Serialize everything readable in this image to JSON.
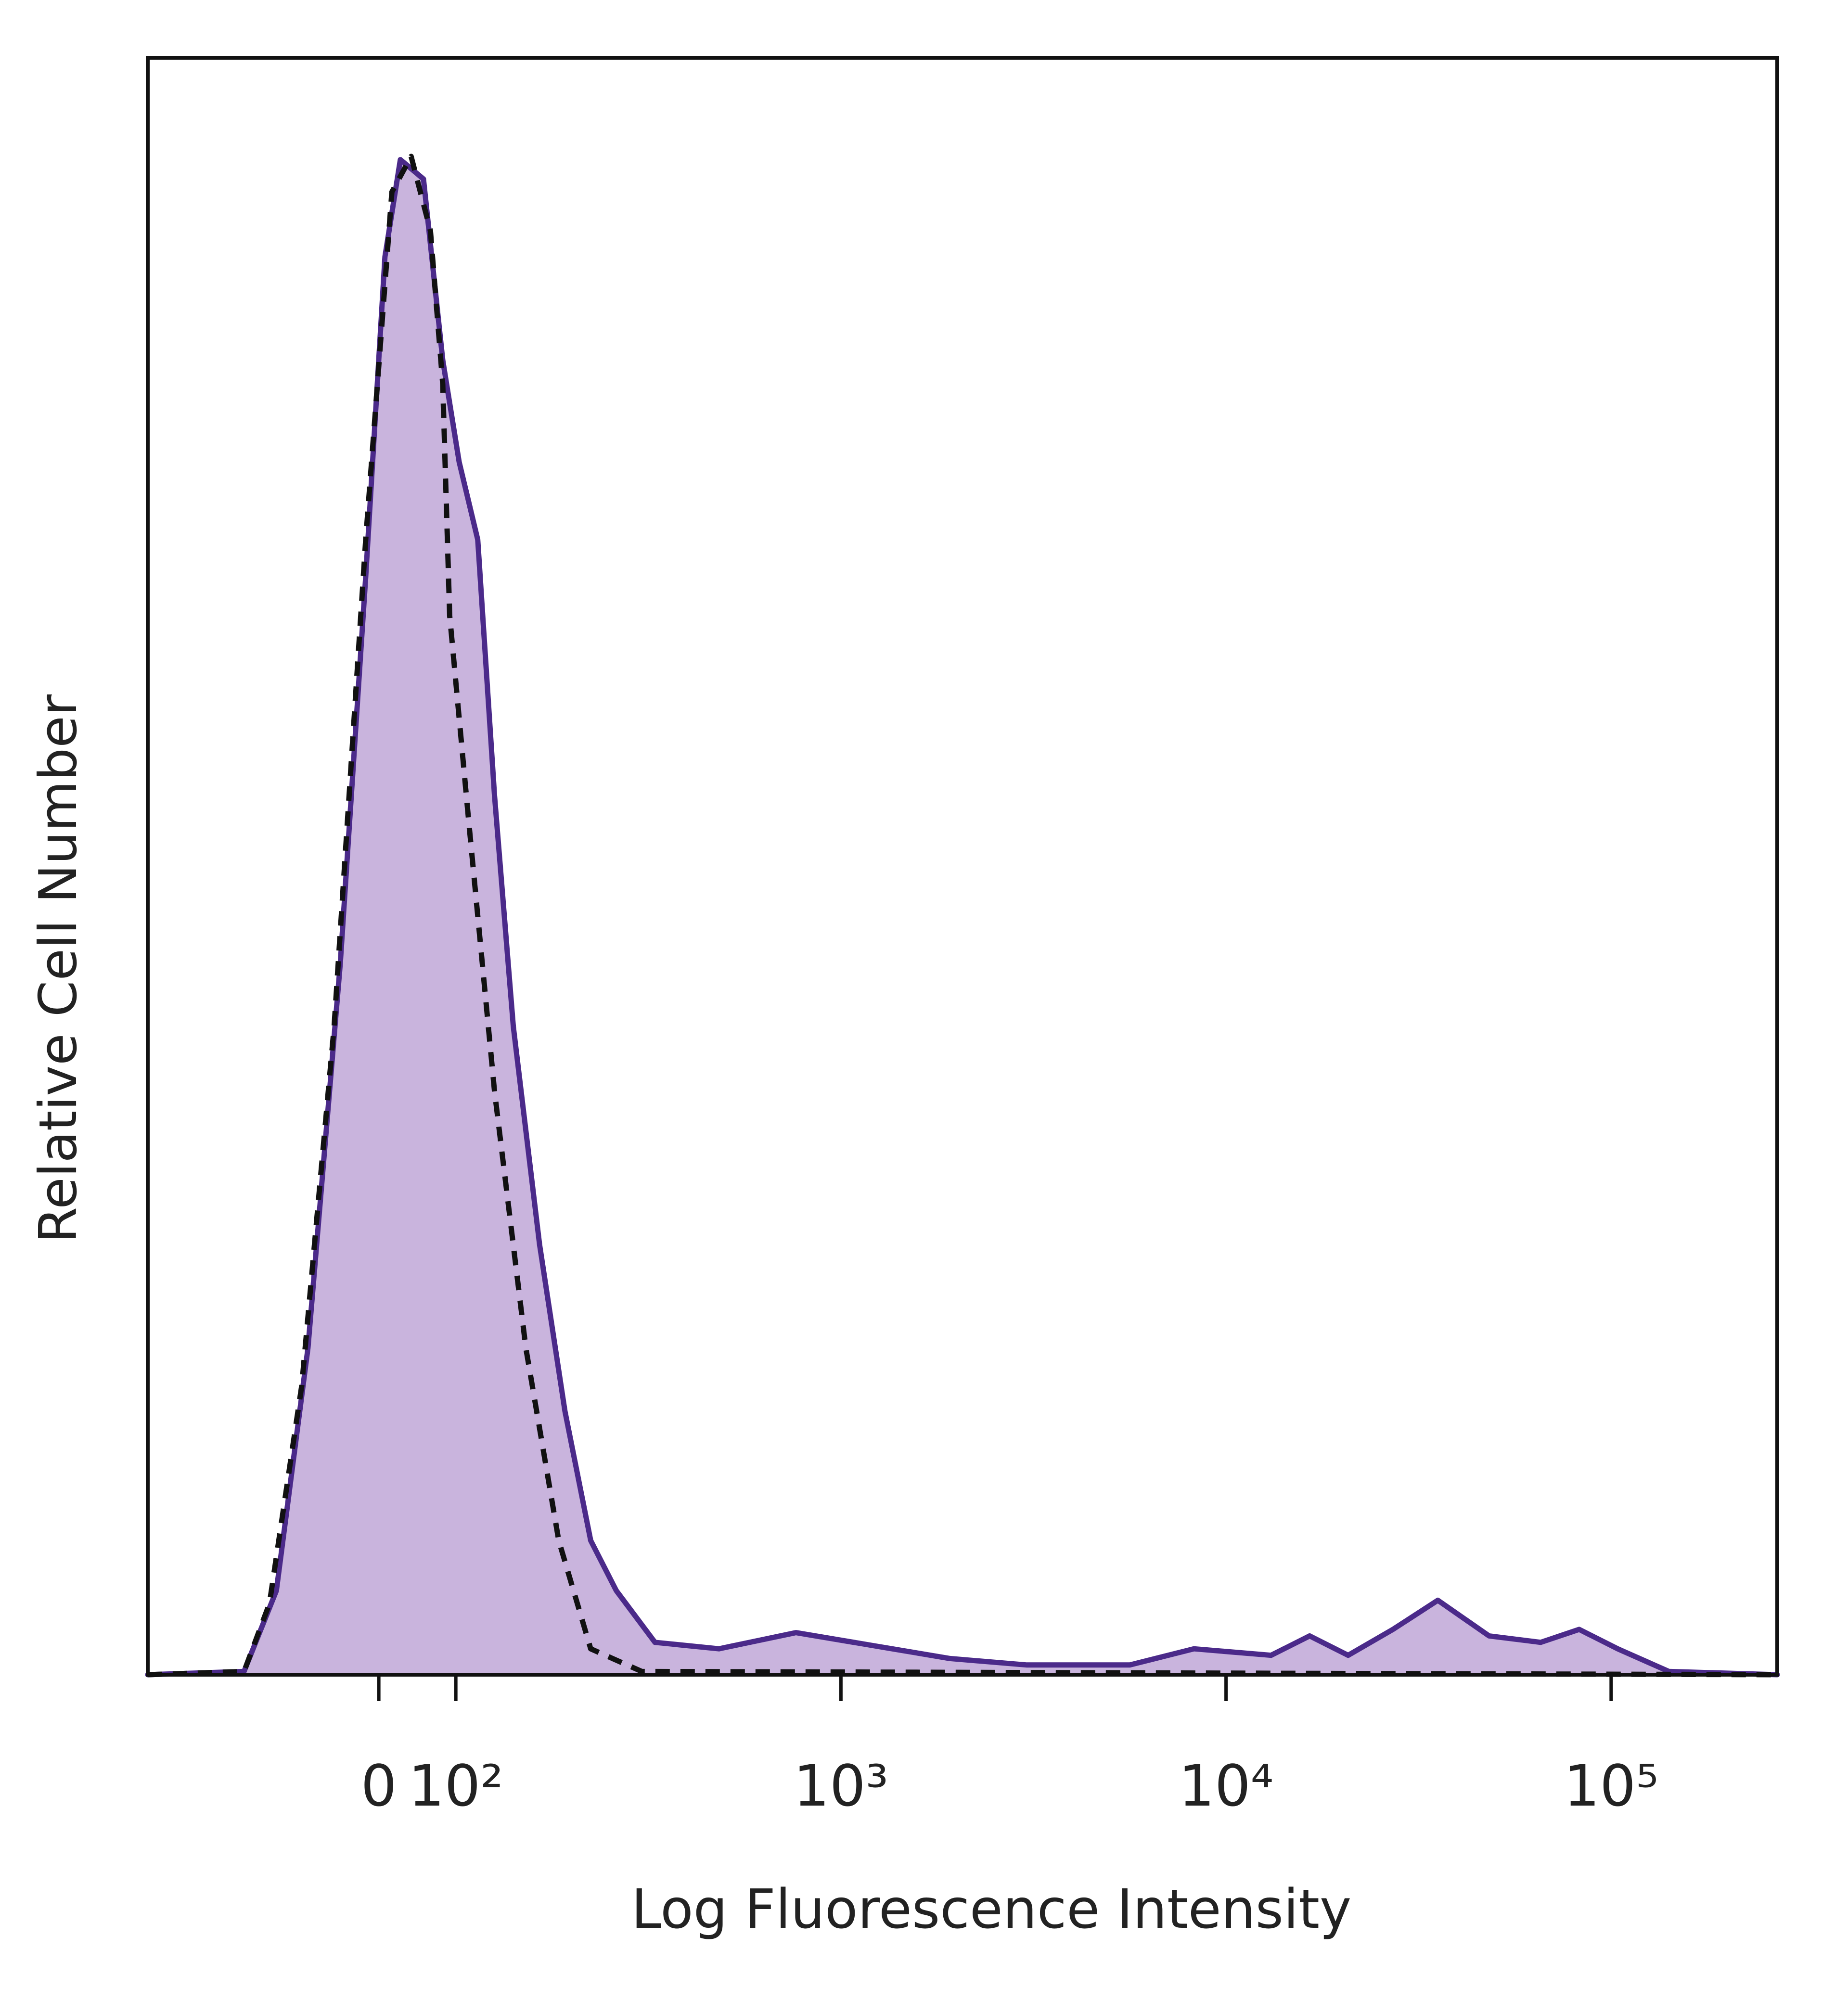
{
  "chart_data": {
    "type": "area",
    "x_label": "Log Fluorescence Intensity",
    "y_label": "Relative Cell Number",
    "xscale": "biexponential",
    "xlim": [
      -300,
      270000
    ],
    "ylim": [
      0,
      100
    ],
    "xticks": [
      0,
      {
        "value": 100,
        "label": "10²"
      },
      {
        "value": 1000,
        "label": "10³"
      },
      {
        "value": 10000,
        "label": "10⁴"
      },
      {
        "value": 100000,
        "label": "10⁵"
      }
    ],
    "grid": false,
    "series": [
      {
        "color": "#4b2a8a",
        "fill": "#c9b4dd",
        "line_style": "solid",
        "x": [
          -300,
          -175,
          -133,
          -92,
          -50,
          -17,
          8,
          28,
          58,
          83,
          102,
          114,
          126,
          141,
          165,
          192,
          224,
          261,
          329,
          482,
          764,
          1211,
          1919,
          3041,
          5623,
          8254,
          13092,
          16482,
          20749,
          27125,
          35481,
          48195,
          65615,
          82604,
          103992,
          141254,
          270000
        ],
        "values": [
          0,
          0.2,
          5.2,
          20.2,
          44.0,
          67.9,
          87.7,
          93.7,
          92.5,
          81.3,
          75.0,
          70.2,
          54.4,
          40.1,
          26.6,
          16.3,
          8.3,
          5.2,
          2.0,
          1.6,
          2.6,
          1.8,
          1.0,
          0.6,
          0.6,
          1.6,
          1.2,
          2.4,
          1.2,
          2.8,
          4.6,
          2.4,
          2.0,
          2.8,
          1.6,
          0.2,
          0
        ]
      },
      {
        "color": "#111111",
        "line_style": "dashed",
        "x": [
          -300,
          -175,
          -142,
          -100,
          -58,
          -17,
          17,
          42,
          67,
          83,
          92,
          108,
          126,
          152,
          185,
          224,
          304,
          270000
        ],
        "values": [
          0,
          0.2,
          4.4,
          17.9,
          40.1,
          70.2,
          91.7,
          93.9,
          89.3,
          79.8,
          65.5,
          52.8,
          36.1,
          20.2,
          8.3,
          1.6,
          0.2,
          0
        ]
      }
    ]
  }
}
